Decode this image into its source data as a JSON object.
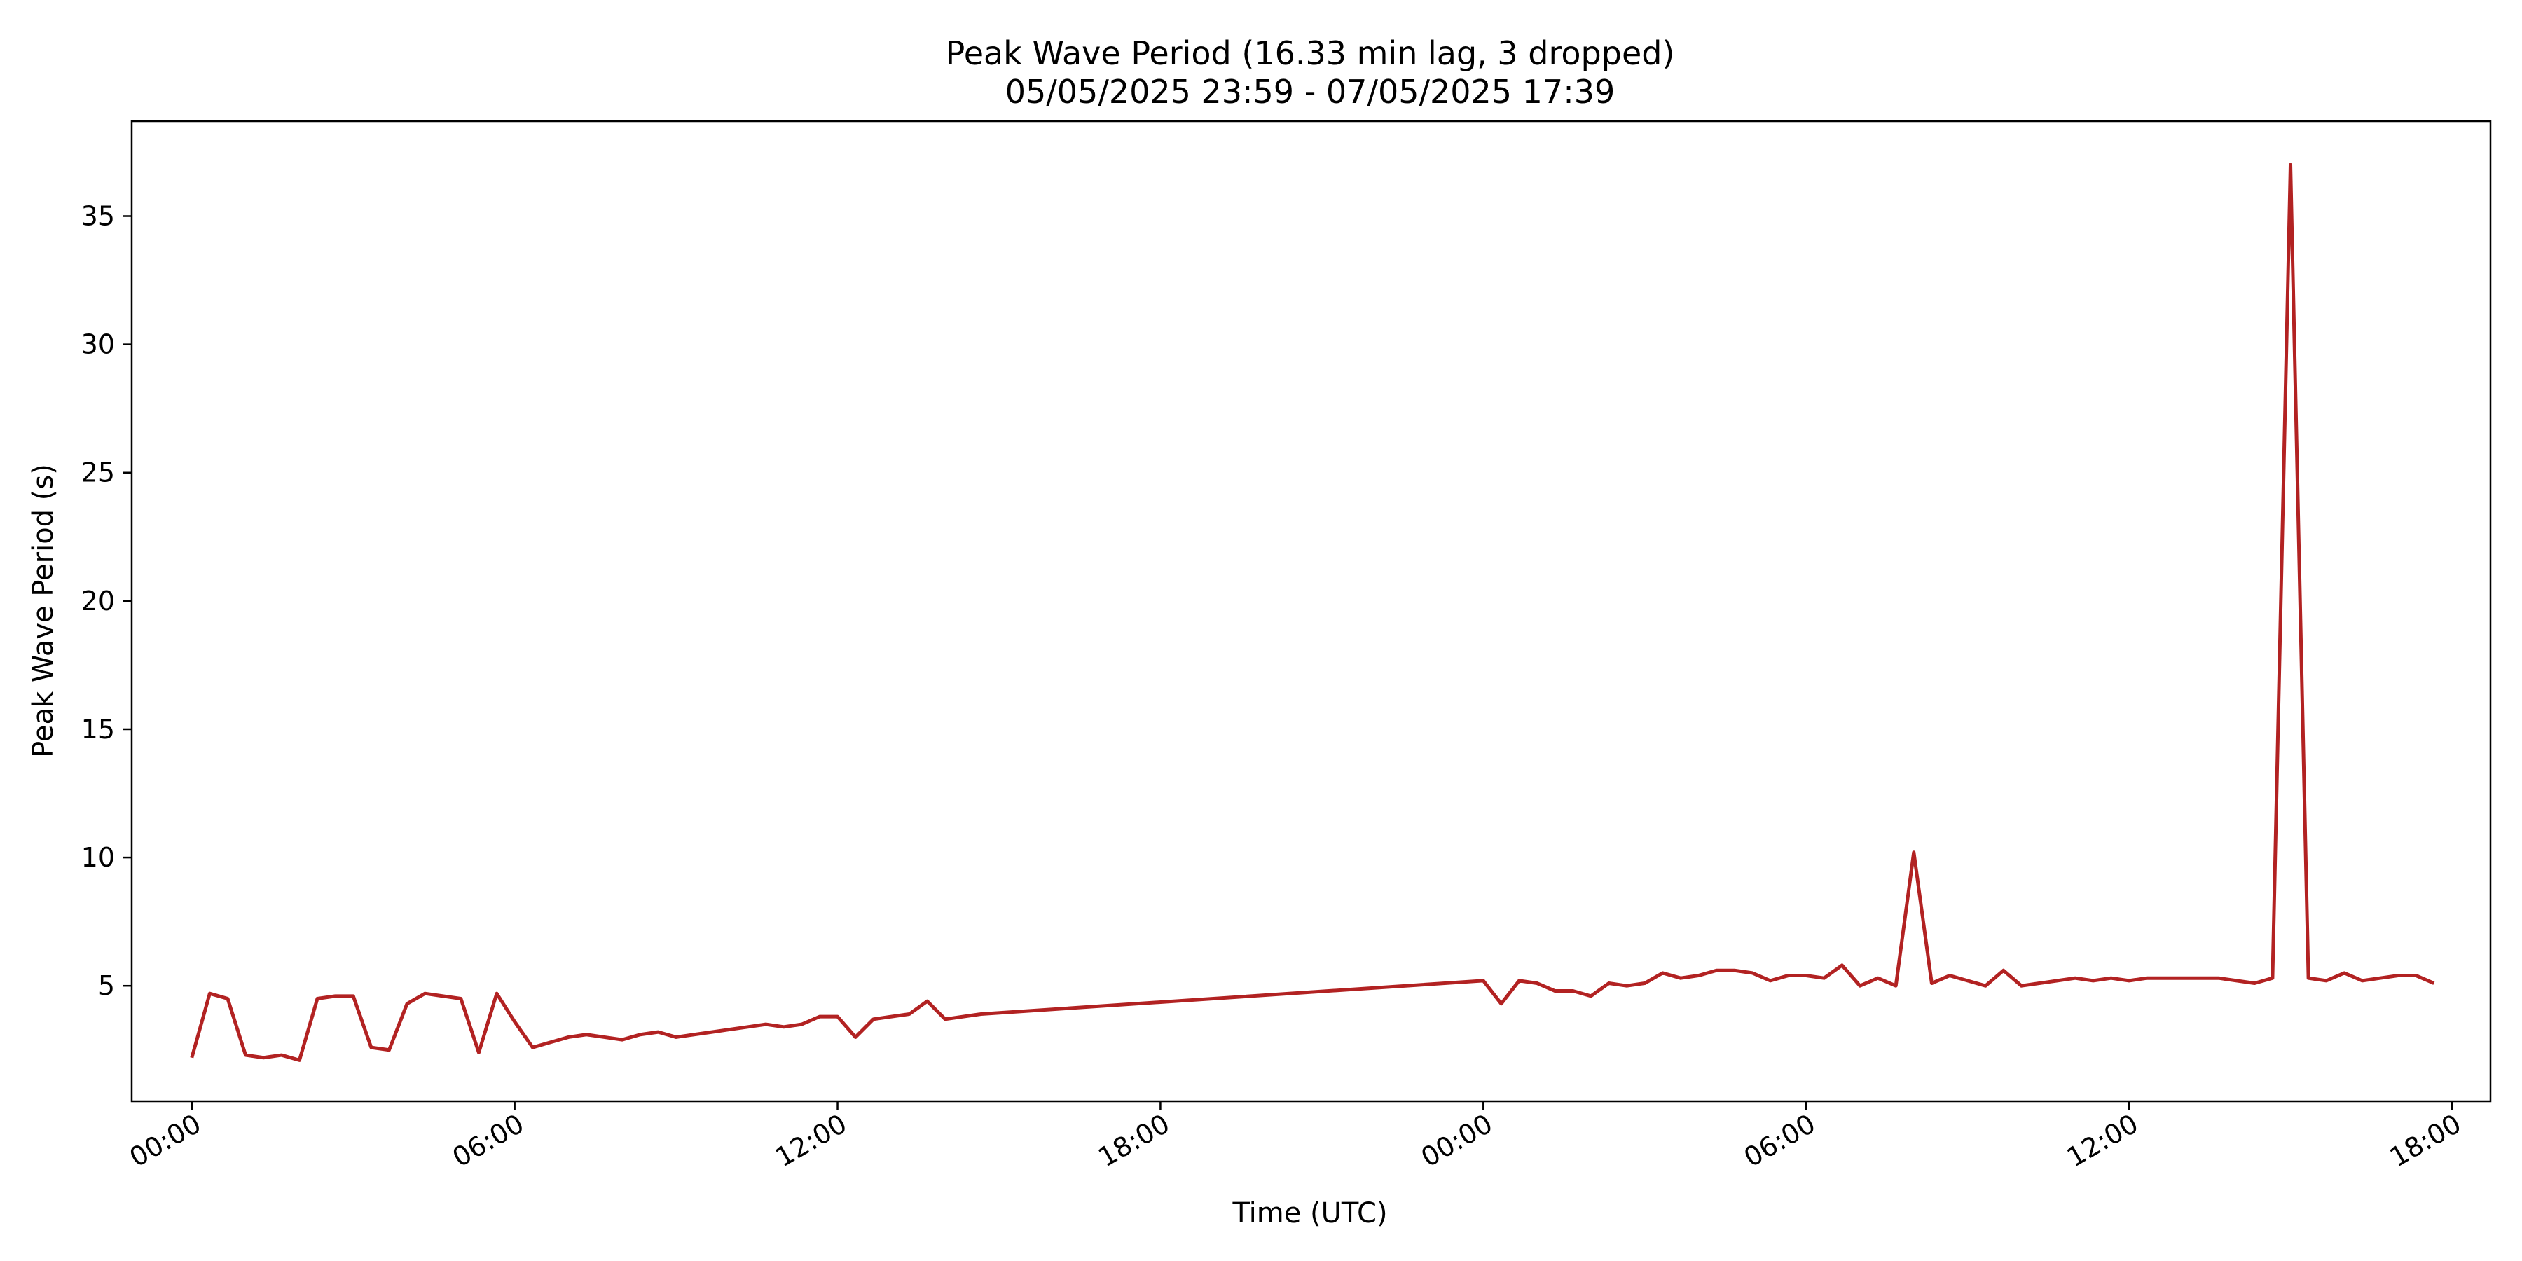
{
  "chart_data": {
    "type": "line",
    "title": "Peak Wave Period (16.33 min lag, 3 dropped)",
    "subtitle": "05/05/2025 23:59 - 07/05/2025 17:39",
    "xlabel": "Time (UTC)",
    "ylabel": "Peak Wave Period (s)",
    "xlim": [
      "05/05/2025 22:53",
      "07/05/2025 18:43"
    ],
    "ylim": [
      0.5,
      38.7
    ],
    "grid": false,
    "x_ticks": [
      "00:00",
      "06:00",
      "12:00",
      "18:00",
      "00:00",
      "06:00",
      "12:00",
      "18:00"
    ],
    "x_tick_times": [
      "06/05/2025 00:00",
      "06/05/2025 06:00",
      "06/05/2025 12:00",
      "06/05/2025 18:00",
      "07/05/2025 00:00",
      "07/05/2025 06:00",
      "07/05/2025 12:00",
      "07/05/2025 18:00"
    ],
    "y_ticks": [
      5,
      10,
      15,
      20,
      25,
      30,
      35
    ],
    "colors": {
      "line": "#b22222"
    },
    "series": [
      {
        "x": [
          "06/05/2025 00:00",
          "06/05/2025 00:20",
          "06/05/2025 00:40",
          "06/05/2025 01:00",
          "06/05/2025 01:20",
          "06/05/2025 01:40",
          "06/05/2025 02:00",
          "06/05/2025 02:20",
          "06/05/2025 02:40",
          "06/05/2025 03:00",
          "06/05/2025 03:20",
          "06/05/2025 03:40",
          "06/05/2025 04:00",
          "06/05/2025 04:20",
          "06/05/2025 04:40",
          "06/05/2025 05:00",
          "06/05/2025 05:20",
          "06/05/2025 05:40",
          "06/05/2025 06:00",
          "06/05/2025 06:20",
          "06/05/2025 06:40",
          "06/05/2025 07:00",
          "06/05/2025 07:20",
          "06/05/2025 07:40",
          "06/05/2025 08:00",
          "06/05/2025 08:20",
          "06/05/2025 08:40",
          "06/05/2025 09:00",
          "06/05/2025 09:20",
          "06/05/2025 09:40",
          "06/05/2025 10:00",
          "06/05/2025 10:20",
          "06/05/2025 10:40",
          "06/05/2025 11:00",
          "06/05/2025 11:20",
          "06/05/2025 11:40",
          "06/05/2025 12:00",
          "06/05/2025 12:20",
          "06/05/2025 12:40",
          "06/05/2025 13:00",
          "06/05/2025 13:20",
          "06/05/2025 13:40",
          "06/05/2025 14:00",
          "06/05/2025 14:20",
          "06/05/2025 14:40",
          "07/05/2025 00:00",
          "07/05/2025 00:20",
          "07/05/2025 00:40",
          "07/05/2025 01:00",
          "07/05/2025 01:20",
          "07/05/2025 01:40",
          "07/05/2025 02:00",
          "07/05/2025 02:20",
          "07/05/2025 02:40",
          "07/05/2025 03:00",
          "07/05/2025 03:20",
          "07/05/2025 03:40",
          "07/05/2025 04:00",
          "07/05/2025 04:20",
          "07/05/2025 04:40",
          "07/05/2025 05:00",
          "07/05/2025 05:20",
          "07/05/2025 05:40",
          "07/05/2025 06:00",
          "07/05/2025 06:20",
          "07/05/2025 06:40",
          "07/05/2025 07:00",
          "07/05/2025 07:20",
          "07/05/2025 07:40",
          "07/05/2025 08:00",
          "07/05/2025 08:20",
          "07/05/2025 08:40",
          "07/05/2025 09:00",
          "07/05/2025 09:20",
          "07/05/2025 09:40",
          "07/05/2025 10:00",
          "07/05/2025 10:20",
          "07/05/2025 10:40",
          "07/05/2025 11:00",
          "07/05/2025 11:20",
          "07/05/2025 11:40",
          "07/05/2025 12:00",
          "07/05/2025 12:20",
          "07/05/2025 12:40",
          "07/05/2025 13:00",
          "07/05/2025 13:20",
          "07/05/2025 13:40",
          "07/05/2025 14:00",
          "07/05/2025 14:20",
          "07/05/2025 14:40",
          "07/05/2025 15:00",
          "07/05/2025 15:20",
          "07/05/2025 15:40",
          "07/05/2025 16:00",
          "07/05/2025 16:20",
          "07/05/2025 16:40",
          "07/05/2025 17:00",
          "07/05/2025 17:20",
          "07/05/2025 17:40"
        ],
        "y": [
          2.2,
          4.7,
          4.5,
          2.3,
          2.2,
          2.3,
          2.1,
          4.5,
          4.6,
          4.6,
          2.6,
          2.5,
          4.3,
          4.7,
          4.6,
          4.5,
          2.4,
          4.7,
          3.6,
          2.6,
          2.8,
          3.0,
          3.1,
          3.0,
          2.9,
          3.1,
          3.2,
          3.0,
          3.1,
          3.2,
          3.3,
          3.4,
          3.5,
          3.4,
          3.5,
          3.8,
          3.8,
          3.0,
          3.7,
          3.8,
          3.9,
          4.4,
          3.7,
          3.8,
          3.9,
          5.2,
          4.3,
          5.2,
          5.1,
          4.8,
          4.8,
          4.6,
          5.1,
          5.0,
          5.1,
          5.5,
          5.3,
          5.4,
          5.6,
          5.6,
          5.5,
          5.2,
          5.4,
          5.4,
          5.3,
          5.8,
          5.0,
          5.3,
          5.0,
          10.2,
          5.1,
          5.4,
          5.2,
          5.0,
          5.6,
          5.0,
          5.1,
          5.2,
          5.3,
          5.2,
          5.3,
          5.2,
          5.3,
          5.3,
          5.3,
          5.3,
          5.3,
          5.2,
          5.1,
          5.3,
          37.0,
          5.3,
          5.2,
          5.5,
          5.2,
          5.3,
          5.4,
          5.4,
          5.1
        ]
      }
    ]
  }
}
